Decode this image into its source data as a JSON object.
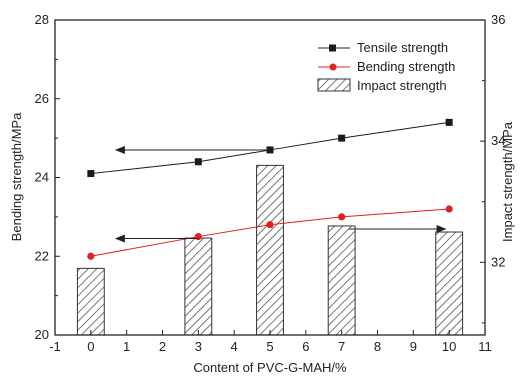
{
  "chart_data": {
    "type": "bar",
    "x_label": "Content of PVC-G-MAH/%",
    "y_left_label": "Bending strength/MPa",
    "y_right_label": "Impact strength/MPa",
    "x_range": [
      -1,
      11
    ],
    "x_ticks": [
      "-1",
      "0",
      "1",
      "2",
      "3",
      "4",
      "5",
      "6",
      "7",
      "8",
      "9",
      "10",
      "11"
    ],
    "y_left_range": [
      20,
      28
    ],
    "y_left_ticks": [
      "20",
      "22",
      "24",
      "26",
      "28"
    ],
    "y_right_range": [
      30.8,
      36
    ],
    "y_right_ticks": [
      "32",
      "34",
      "36"
    ],
    "grid": false,
    "legend_position": "top-right",
    "x": [
      0,
      3,
      5,
      7,
      10
    ],
    "series": [
      {
        "name": "Tensile strength",
        "kind": "line",
        "axis": "left",
        "color": "#1a1a1a",
        "marker": "square",
        "values": [
          24.1,
          24.4,
          24.7,
          25.0,
          25.4
        ]
      },
      {
        "name": "Bending strength",
        "kind": "line",
        "axis": "left",
        "color": "#e02020",
        "marker": "circle",
        "values": [
          22.0,
          22.5,
          22.8,
          23.0,
          23.2
        ]
      },
      {
        "name": "Impact strength",
        "kind": "bar",
        "axis": "right",
        "color": "#555555",
        "pattern": "hatched",
        "values": [
          31.9,
          32.4,
          33.6,
          32.6,
          32.5
        ]
      }
    ],
    "annotations": [
      {
        "type": "arrow",
        "direction": "left",
        "from_x": 5,
        "to_x": 0.7,
        "y_axis": "left",
        "y": 24.7
      },
      {
        "type": "arrow",
        "direction": "left",
        "from_x": 3,
        "to_x": 0.7,
        "y_axis": "left",
        "y": 22.45
      },
      {
        "type": "arrow",
        "direction": "right",
        "from_x": 7.2,
        "to_x": 9.9,
        "y_axis": "right",
        "y": 32.55
      }
    ]
  }
}
